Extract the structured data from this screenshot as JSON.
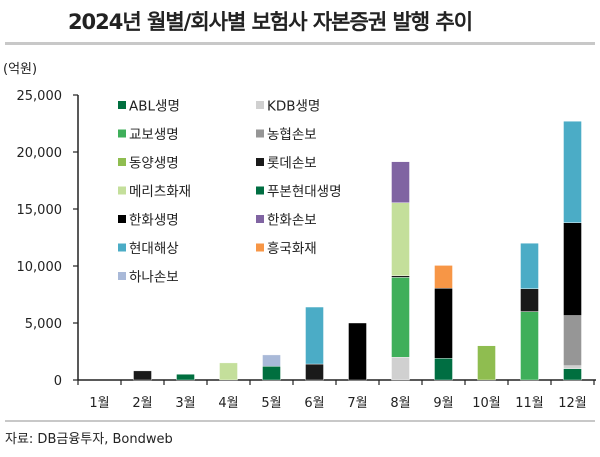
{
  "title": "2024년 월별/회사별 보험사 자본증권 발행 추이",
  "unit_label": "(억원)",
  "source": "자료: DB금융투자, Bondweb",
  "chart_data": {
    "type": "bar",
    "stacked": true,
    "title": "2024년 월별/회사별 보험사 자본증권 발행 추이",
    "ylabel": "(억원)",
    "ylim": [
      0,
      25000
    ],
    "yticks": [
      "0",
      "5,000",
      "10,000",
      "15,000",
      "20,000",
      "25,000"
    ],
    "ytick_values": [
      0,
      5000,
      10000,
      15000,
      20000,
      25000
    ],
    "grid": false,
    "legend_position": "top-left",
    "categories": [
      "1월",
      "2월",
      "3월",
      "4월",
      "5월",
      "6월",
      "7월",
      "8월",
      "9월",
      "10월",
      "11월",
      "12월"
    ],
    "series": [
      {
        "name": "ABL생명",
        "color": "#006f3f",
        "values": [
          0,
          0,
          500,
          0,
          1200,
          0,
          0,
          0,
          0,
          0,
          0,
          1000
        ]
      },
      {
        "name": "KDB생명",
        "color": "#d0d0d0",
        "values": [
          0,
          0,
          0,
          0,
          0,
          0,
          0,
          2000,
          0,
          0,
          0,
          250
        ]
      },
      {
        "name": "교보생명",
        "color": "#3faf5a",
        "values": [
          0,
          0,
          0,
          0,
          0,
          0,
          0,
          7000,
          0,
          0,
          6000,
          0
        ]
      },
      {
        "name": "농협손보",
        "color": "#969696",
        "values": [
          0,
          0,
          0,
          0,
          0,
          0,
          0,
          0,
          0,
          0,
          0,
          4400
        ]
      },
      {
        "name": "동양생명",
        "color": "#8fbd50",
        "values": [
          0,
          0,
          0,
          0,
          0,
          0,
          0,
          0,
          0,
          3000,
          0,
          0
        ]
      },
      {
        "name": "롯데손보",
        "color": "#1a1a1a",
        "values": [
          0,
          800,
          0,
          0,
          0,
          1400,
          0,
          150,
          0,
          0,
          2000,
          0
        ]
      },
      {
        "name": "메리츠화재",
        "color": "#c4df9b",
        "values": [
          0,
          0,
          0,
          1500,
          0,
          0,
          0,
          6400,
          0,
          0,
          0,
          0
        ]
      },
      {
        "name": "푸본현대생명",
        "color": "#006e42",
        "values": [
          0,
          0,
          0,
          0,
          0,
          0,
          0,
          0,
          1900,
          0,
          0,
          0
        ]
      },
      {
        "name": "한화생명",
        "color": "#000000",
        "values": [
          0,
          0,
          0,
          0,
          0,
          0,
          5000,
          0,
          6150,
          0,
          0,
          8150
        ]
      },
      {
        "name": "한화손보",
        "color": "#8064a2",
        "values": [
          0,
          0,
          0,
          0,
          0,
          0,
          0,
          3600,
          0,
          0,
          0,
          0
        ]
      },
      {
        "name": "현대해상",
        "color": "#4bacc6",
        "values": [
          0,
          0,
          0,
          0,
          0,
          5000,
          0,
          0,
          0,
          0,
          4000,
          8900
        ]
      },
      {
        "name": "흥국화재",
        "color": "#f79646",
        "values": [
          0,
          0,
          0,
          0,
          0,
          0,
          0,
          0,
          2000,
          0,
          0,
          0
        ]
      },
      {
        "name": "하나손보",
        "color": "#a9b9d8",
        "values": [
          0,
          0,
          0,
          0,
          1000,
          0,
          0,
          0,
          0,
          0,
          0,
          0
        ]
      }
    ]
  }
}
